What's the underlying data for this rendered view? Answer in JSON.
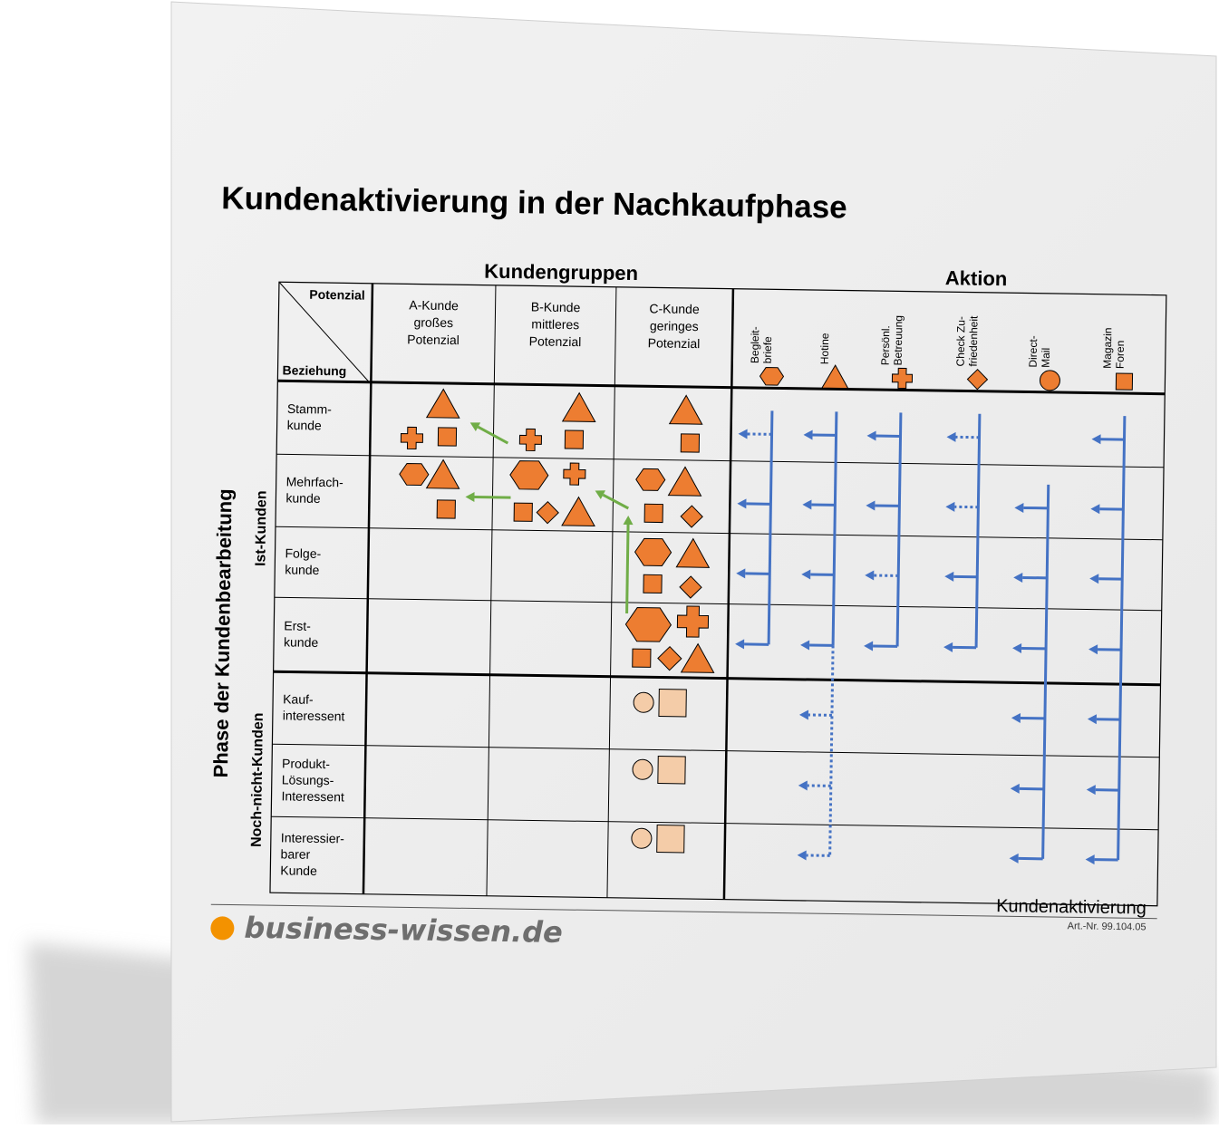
{
  "document": {
    "title": "Kundenaktivierung in der Nachkaufphase",
    "colors": {
      "shape_orange": "#ED7D31",
      "shape_light": "#F4CCA8",
      "arrow_blue": "#4472C4",
      "arrow_green": "#70AD47"
    }
  },
  "matrix": {
    "header_kundengruppen": "Kundengruppen",
    "header_aktion": "Aktion",
    "corner_top": "Potenzial",
    "corner_bottom": "Beziehung",
    "y_axis_title": "Phase der Kundenbearbeitung",
    "group_ist": "Ist-Kunden",
    "group_noch": "Noch-nicht-Kunden",
    "columns": [
      {
        "lines": [
          "A-Kunde",
          "großes",
          "Potenzial"
        ]
      },
      {
        "lines": [
          "B-Kunde",
          "mittleres",
          "Potenzial"
        ]
      },
      {
        "lines": [
          "C-Kunde",
          "geringes",
          "Potenzial"
        ]
      }
    ],
    "actions": [
      {
        "lines": [
          "Begleit-",
          "briefe"
        ],
        "icon": "hexagon-icon"
      },
      {
        "lines": [
          "Hotine"
        ],
        "icon": "triangle-icon"
      },
      {
        "lines": [
          "Persönl.",
          "Betreuung"
        ],
        "icon": "cross-icon"
      },
      {
        "lines": [
          "Check Zu-",
          "friedenheit"
        ],
        "icon": "diamond-icon"
      },
      {
        "lines": [
          "Direct-",
          "Mail"
        ],
        "icon": "circle-icon"
      },
      {
        "lines": [
          "Magazin",
          "Foren"
        ],
        "icon": "square-icon"
      }
    ],
    "rows": [
      {
        "lines": [
          "Stamm-",
          "kunde"
        ]
      },
      {
        "lines": [
          "Mehrfach-",
          "kunde"
        ]
      },
      {
        "lines": [
          "Folge-",
          "kunde"
        ]
      },
      {
        "lines": [
          "Erst-",
          "kunde"
        ]
      },
      {
        "lines": [
          "Kauf-",
          "interessent"
        ]
      },
      {
        "lines": [
          "Produkt-",
          "Lösungs-",
          "Interessent"
        ]
      },
      {
        "lines": [
          "Interessier-",
          "barer",
          "Kunde"
        ]
      }
    ]
  },
  "footer": {
    "doc_label": "Kundenaktivierung",
    "article_no": "Art.-Nr. 99.104.05",
    "brand": "business-wissen.de"
  }
}
